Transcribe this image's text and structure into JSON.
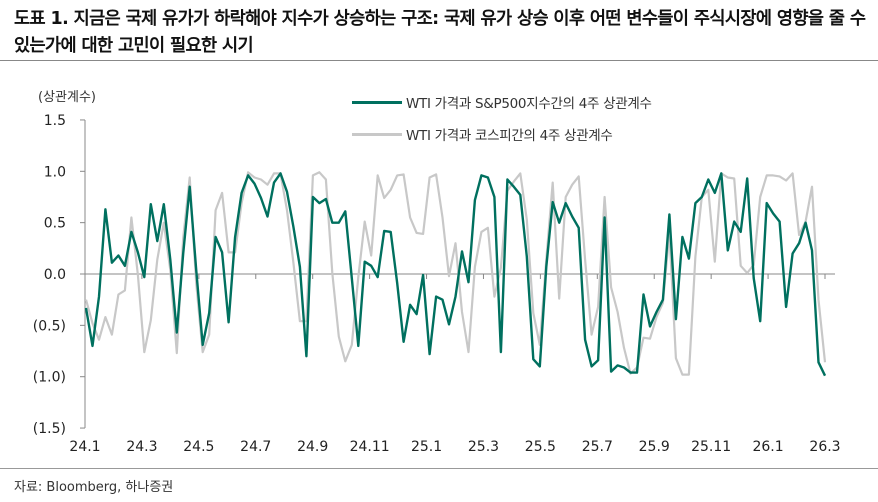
{
  "title": "도표 1. 지금은 국제 유가가 하락해야 지수가 상승하는 구조: 국제 유가 상승 이후 어떤 변수들이 주식시장에 영향을 줄 수 있는가에 대한 고민이 필요한 시기",
  "source": "자료: Bloomberg, 하나증권",
  "chart_data": {
    "type": "line",
    "ylabel": "(상관계수)",
    "ylim": [
      -1.5,
      1.5
    ],
    "yticks": [
      "1.5",
      "1.0",
      "0.5",
      "0.0",
      "(0.5)",
      "(1.0)",
      "(1.5)"
    ],
    "ytick_values": [
      1.5,
      1.0,
      0.5,
      0.0,
      -0.5,
      -1.0,
      -1.5
    ],
    "xticks": [
      "24.1",
      "24.3",
      "24.5",
      "24.7",
      "24.9",
      "24.11",
      "25.1",
      "25.3",
      "25.5",
      "25.7",
      "25.9",
      "25.11",
      "26.1",
      "26.3"
    ],
    "frequency": "weekly",
    "grid": false,
    "legend_position": "top-right",
    "series": [
      {
        "name": "WTI 가격과 S&P500지수간의 4주 상관계수",
        "color": "#00705f",
        "values": [
          -0.33,
          -0.7,
          -0.22,
          0.63,
          0.11,
          0.18,
          0.08,
          0.41,
          0.21,
          -0.03,
          0.68,
          0.32,
          0.68,
          0.14,
          -0.57,
          0.2,
          0.85,
          0.04,
          -0.69,
          -0.38,
          0.36,
          0.21,
          -0.47,
          0.36,
          0.79,
          0.96,
          0.88,
          0.74,
          0.56,
          0.89,
          0.98,
          0.8,
          0.46,
          0.07,
          -0.8,
          0.75,
          0.69,
          0.73,
          0.5,
          0.5,
          0.61,
          -0.04,
          -0.7,
          0.12,
          0.08,
          -0.03,
          0.42,
          0.41,
          -0.09,
          -0.66,
          -0.3,
          -0.39,
          -0.01,
          -0.78,
          -0.22,
          -0.25,
          -0.49,
          -0.22,
          0.22,
          -0.08,
          0.72,
          0.96,
          0.94,
          0.75,
          -0.76,
          0.92,
          0.85,
          0.77,
          0.17,
          -0.83,
          -0.9,
          0.07,
          0.7,
          0.5,
          0.69,
          0.56,
          0.45,
          -0.64,
          -0.9,
          -0.84,
          0.55,
          -0.95,
          -0.89,
          -0.91,
          -0.96,
          -0.96,
          -0.2,
          -0.51,
          -0.37,
          -0.25,
          0.58,
          -0.44,
          0.36,
          0.15,
          0.69,
          0.75,
          0.92,
          0.79,
          0.98,
          0.23,
          0.51,
          0.41,
          0.93,
          -0.04,
          -0.46,
          0.69,
          0.59,
          0.51,
          -0.32,
          0.2,
          0.3,
          0.5,
          0.23,
          -0.86,
          -0.99
        ]
      },
      {
        "name": "WTI 가격과 코스피간의 4주 상관계수",
        "color": "#c8c8c8",
        "values": [
          -0.25,
          -0.48,
          -0.64,
          -0.42,
          -0.59,
          -0.2,
          -0.16,
          0.55,
          -0.01,
          -0.76,
          -0.45,
          0.14,
          0.5,
          0.04,
          -0.77,
          0.35,
          0.94,
          -0.09,
          -0.76,
          -0.59,
          0.62,
          0.79,
          0.21,
          0.21,
          0.69,
          0.99,
          0.94,
          0.92,
          0.87,
          0.98,
          0.98,
          0.62,
          0.11,
          -0.46,
          -0.46,
          0.96,
          0.99,
          0.92,
          0.01,
          -0.61,
          -0.85,
          -0.69,
          -0.03,
          0.51,
          0.18,
          0.96,
          0.74,
          0.82,
          0.96,
          0.97,
          0.55,
          0.4,
          0.39,
          0.94,
          0.97,
          0.55,
          -0.02,
          0.3,
          -0.37,
          -0.76,
          0.07,
          0.41,
          0.45,
          -0.22,
          0.06,
          0.81,
          0.9,
          0.98,
          0.53,
          -0.38,
          -0.69,
          0.14,
          0.89,
          -0.24,
          0.75,
          0.87,
          0.95,
          0.14,
          -0.59,
          -0.32,
          0.75,
          -0.13,
          -0.37,
          -0.72,
          -0.97,
          -0.91,
          -0.62,
          -0.63,
          -0.42,
          -0.28,
          0.41,
          -0.82,
          -0.98,
          -0.98,
          0.17,
          0.75,
          0.82,
          0.12,
          0.98,
          0.94,
          0.93,
          0.08,
          0.01,
          0.09,
          0.75,
          0.96,
          0.96,
          0.95,
          0.91,
          0.98,
          0.38,
          0.51,
          0.85,
          -0.25,
          -0.86
        ]
      }
    ]
  }
}
